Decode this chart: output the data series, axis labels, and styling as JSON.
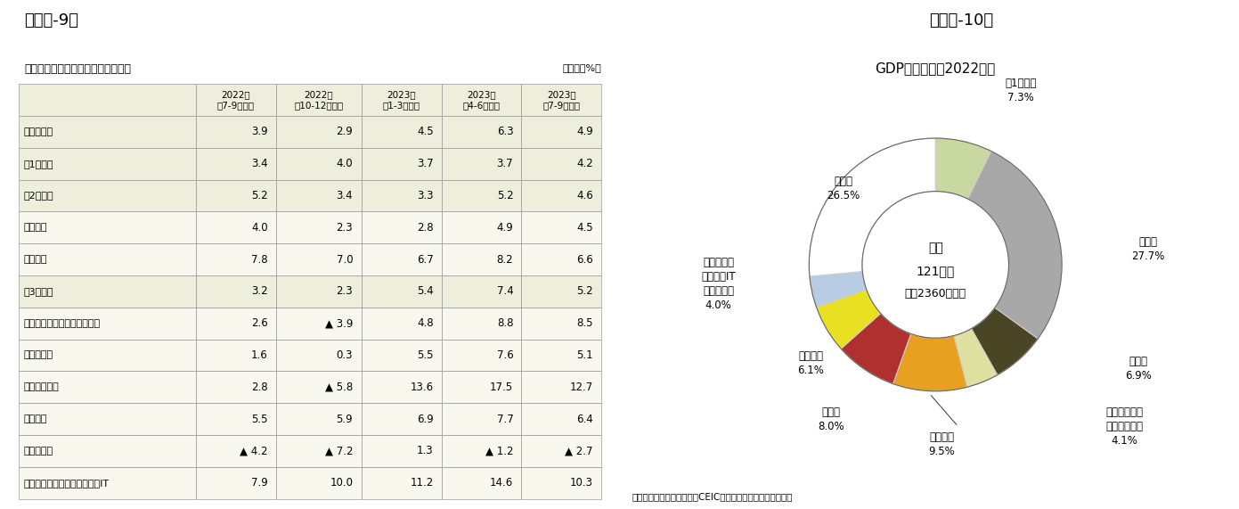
{
  "title9": "（図表-9）",
  "title10": "（図表-10）",
  "table_title": "産業別の実質成長率（前年同期比）",
  "table_unit": "（単位：%）",
  "columns": [
    "2022年\n（7-9月期）",
    "2022年\n（10-12月期）",
    "2023年\n（1-3月期）",
    "2023年\n（4-6月期）",
    "2023年\n（7-9月期）"
  ],
  "rows": [
    {
      "label": "国内総生産",
      "indent": 0,
      "values": [
        "3.9",
        "2.9",
        "4.5",
        "6.3",
        "4.9"
      ]
    },
    {
      "label": "第1次産業",
      "indent": 0,
      "values": [
        "3.4",
        "4.0",
        "3.7",
        "3.7",
        "4.2"
      ]
    },
    {
      "label": "第2次産業",
      "indent": 0,
      "values": [
        "5.2",
        "3.4",
        "3.3",
        "5.2",
        "4.6"
      ]
    },
    {
      "label": "製造業",
      "indent": 1,
      "values": [
        "4.0",
        "2.3",
        "2.8",
        "4.9",
        "4.5"
      ]
    },
    {
      "label": "建築業",
      "indent": 1,
      "values": [
        "7.8",
        "7.0",
        "6.7",
        "8.2",
        "6.6"
      ]
    },
    {
      "label": "第3次産業",
      "indent": 0,
      "values": [
        "3.2",
        "2.3",
        "5.4",
        "7.4",
        "5.2"
      ]
    },
    {
      "label": "交通・運輸・倉庫・郵便業",
      "indent": 1,
      "values": [
        "2.6",
        "▲ 3.9",
        "4.8",
        "8.8",
        "8.5"
      ]
    },
    {
      "label": "卸小売業",
      "indent": 1,
      "values": [
        "1.6",
        "0.3",
        "5.5",
        "7.6",
        "5.1"
      ]
    },
    {
      "label": "宿泊飲食業",
      "indent": 1,
      "values": [
        "2.8",
        "▲ 5.8",
        "13.6",
        "17.5",
        "12.7"
      ]
    },
    {
      "label": "金融業",
      "indent": 1,
      "values": [
        "5.5",
        "5.9",
        "6.9",
        "7.7",
        "6.4"
      ]
    },
    {
      "label": "不動産業",
      "indent": 1,
      "values": [
        "▲ 4.2",
        "▲ 7.2",
        "1.3",
        "▲ 1.2",
        "▲ 2.7"
      ]
    },
    {
      "label": "情報通信・ソフトウェア・IT",
      "indent": 1,
      "values": [
        "7.9",
        "10.0",
        "11.2",
        "14.6",
        "10.3"
      ]
    }
  ],
  "pie_title": "GDP産業構成（2022年）",
  "pie_center_text1": "合計",
  "pie_center_text2": "121兆元",
  "pie_center_text3": "（約2360兆円）",
  "pie_source": "（資料）中国国家統計局、CEICよりニッセイ基礎研究所作成",
  "pie_values": [
    7.3,
    27.7,
    6.9,
    4.1,
    9.5,
    8.0,
    6.1,
    4.0,
    26.5
  ],
  "pie_colors": [
    "#c8d8a0",
    "#a8a8a8",
    "#4a4525",
    "#e0e0a0",
    "#e8a020",
    "#b03030",
    "#e8e020",
    "#b8cce4",
    "#ffffff"
  ],
  "pie_edge_colors": [
    "#888888",
    "#888888",
    "#888888",
    "#888888",
    "#888888",
    "#888888",
    "#888888",
    "#888888",
    "#888888"
  ],
  "bg_color": "#ffffff",
  "table_header_bg": "#eeeedd",
  "table_sub_bg": "#f8f8ee",
  "table_border_color": "#999999"
}
